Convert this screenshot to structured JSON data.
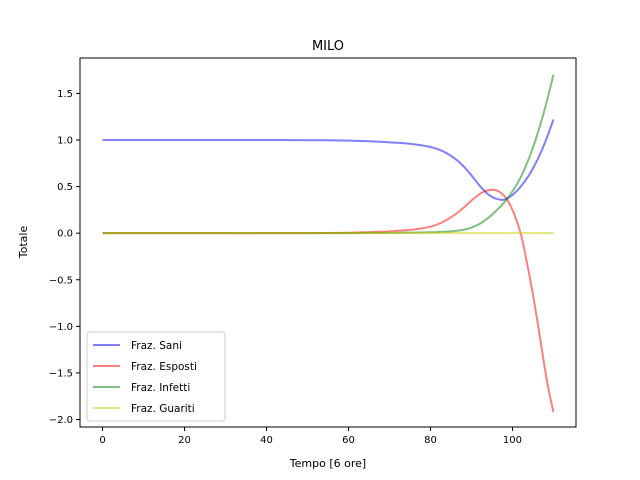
{
  "chart_data": {
    "type": "line",
    "title": "MILO",
    "xlabel": "Tempo [6 ore]",
    "ylabel": "Totale",
    "xlim": [
      -5.5,
      115.5
    ],
    "ylim": [
      -2.08,
      1.88
    ],
    "xticks": [
      0,
      20,
      40,
      60,
      80,
      100
    ],
    "yticks": [
      -2.0,
      -1.5,
      -1.0,
      -0.5,
      0.0,
      0.5,
      1.0,
      1.5
    ],
    "ytick_labels": [
      "−2.0",
      "−1.5",
      "−1.0",
      "−0.5",
      "0.0",
      "0.5",
      "1.0",
      "1.5"
    ],
    "grid": false,
    "legend_position": "lower-left",
    "series": [
      {
        "name": "Fraz. Sani",
        "color": "#0000ff",
        "x": [
          0,
          10,
          20,
          30,
          40,
          50,
          55,
          60,
          65,
          70,
          75,
          80,
          83,
          86,
          88,
          90,
          92,
          94,
          96,
          98,
          100,
          102,
          104,
          106,
          108,
          110
        ],
        "y": [
          1.0,
          1.0,
          1.0,
          1.0,
          1.0,
          0.998,
          0.997,
          0.993,
          0.986,
          0.975,
          0.96,
          0.925,
          0.88,
          0.8,
          0.72,
          0.62,
          0.51,
          0.42,
          0.37,
          0.36,
          0.41,
          0.5,
          0.62,
          0.78,
          0.98,
          1.22
        ]
      },
      {
        "name": "Fraz. Esposti",
        "color": "#ff0000",
        "x": [
          0,
          10,
          20,
          30,
          40,
          50,
          55,
          60,
          65,
          70,
          75,
          80,
          83,
          86,
          88,
          90,
          92,
          94,
          96,
          98,
          100,
          102,
          103,
          104,
          105,
          106,
          107,
          108,
          109,
          110
        ],
        "y": [
          0.0,
          0.0,
          0.0,
          0.0,
          0.0,
          0.001,
          0.002,
          0.005,
          0.011,
          0.02,
          0.035,
          0.07,
          0.12,
          0.2,
          0.27,
          0.35,
          0.42,
          0.46,
          0.46,
          0.4,
          0.25,
          0.0,
          -0.2,
          -0.42,
          -0.66,
          -0.92,
          -1.2,
          -1.48,
          -1.72,
          -1.92
        ]
      },
      {
        "name": "Fraz. Infetti",
        "color": "#008000",
        "x": [
          0,
          10,
          20,
          30,
          40,
          50,
          60,
          70,
          80,
          85,
          88,
          90,
          92,
          94,
          96,
          98,
          100,
          102,
          104,
          106,
          108,
          110
        ],
        "y": [
          0.0,
          0.0,
          0.0,
          0.0,
          0.0,
          0.0,
          0.001,
          0.003,
          0.01,
          0.02,
          0.035,
          0.06,
          0.1,
          0.16,
          0.24,
          0.33,
          0.45,
          0.6,
          0.8,
          1.05,
          1.35,
          1.7
        ]
      },
      {
        "name": "Fraz. Guariti",
        "color": "#cccc00",
        "x": [
          0,
          110
        ],
        "y": [
          0.0,
          0.0
        ]
      }
    ]
  }
}
